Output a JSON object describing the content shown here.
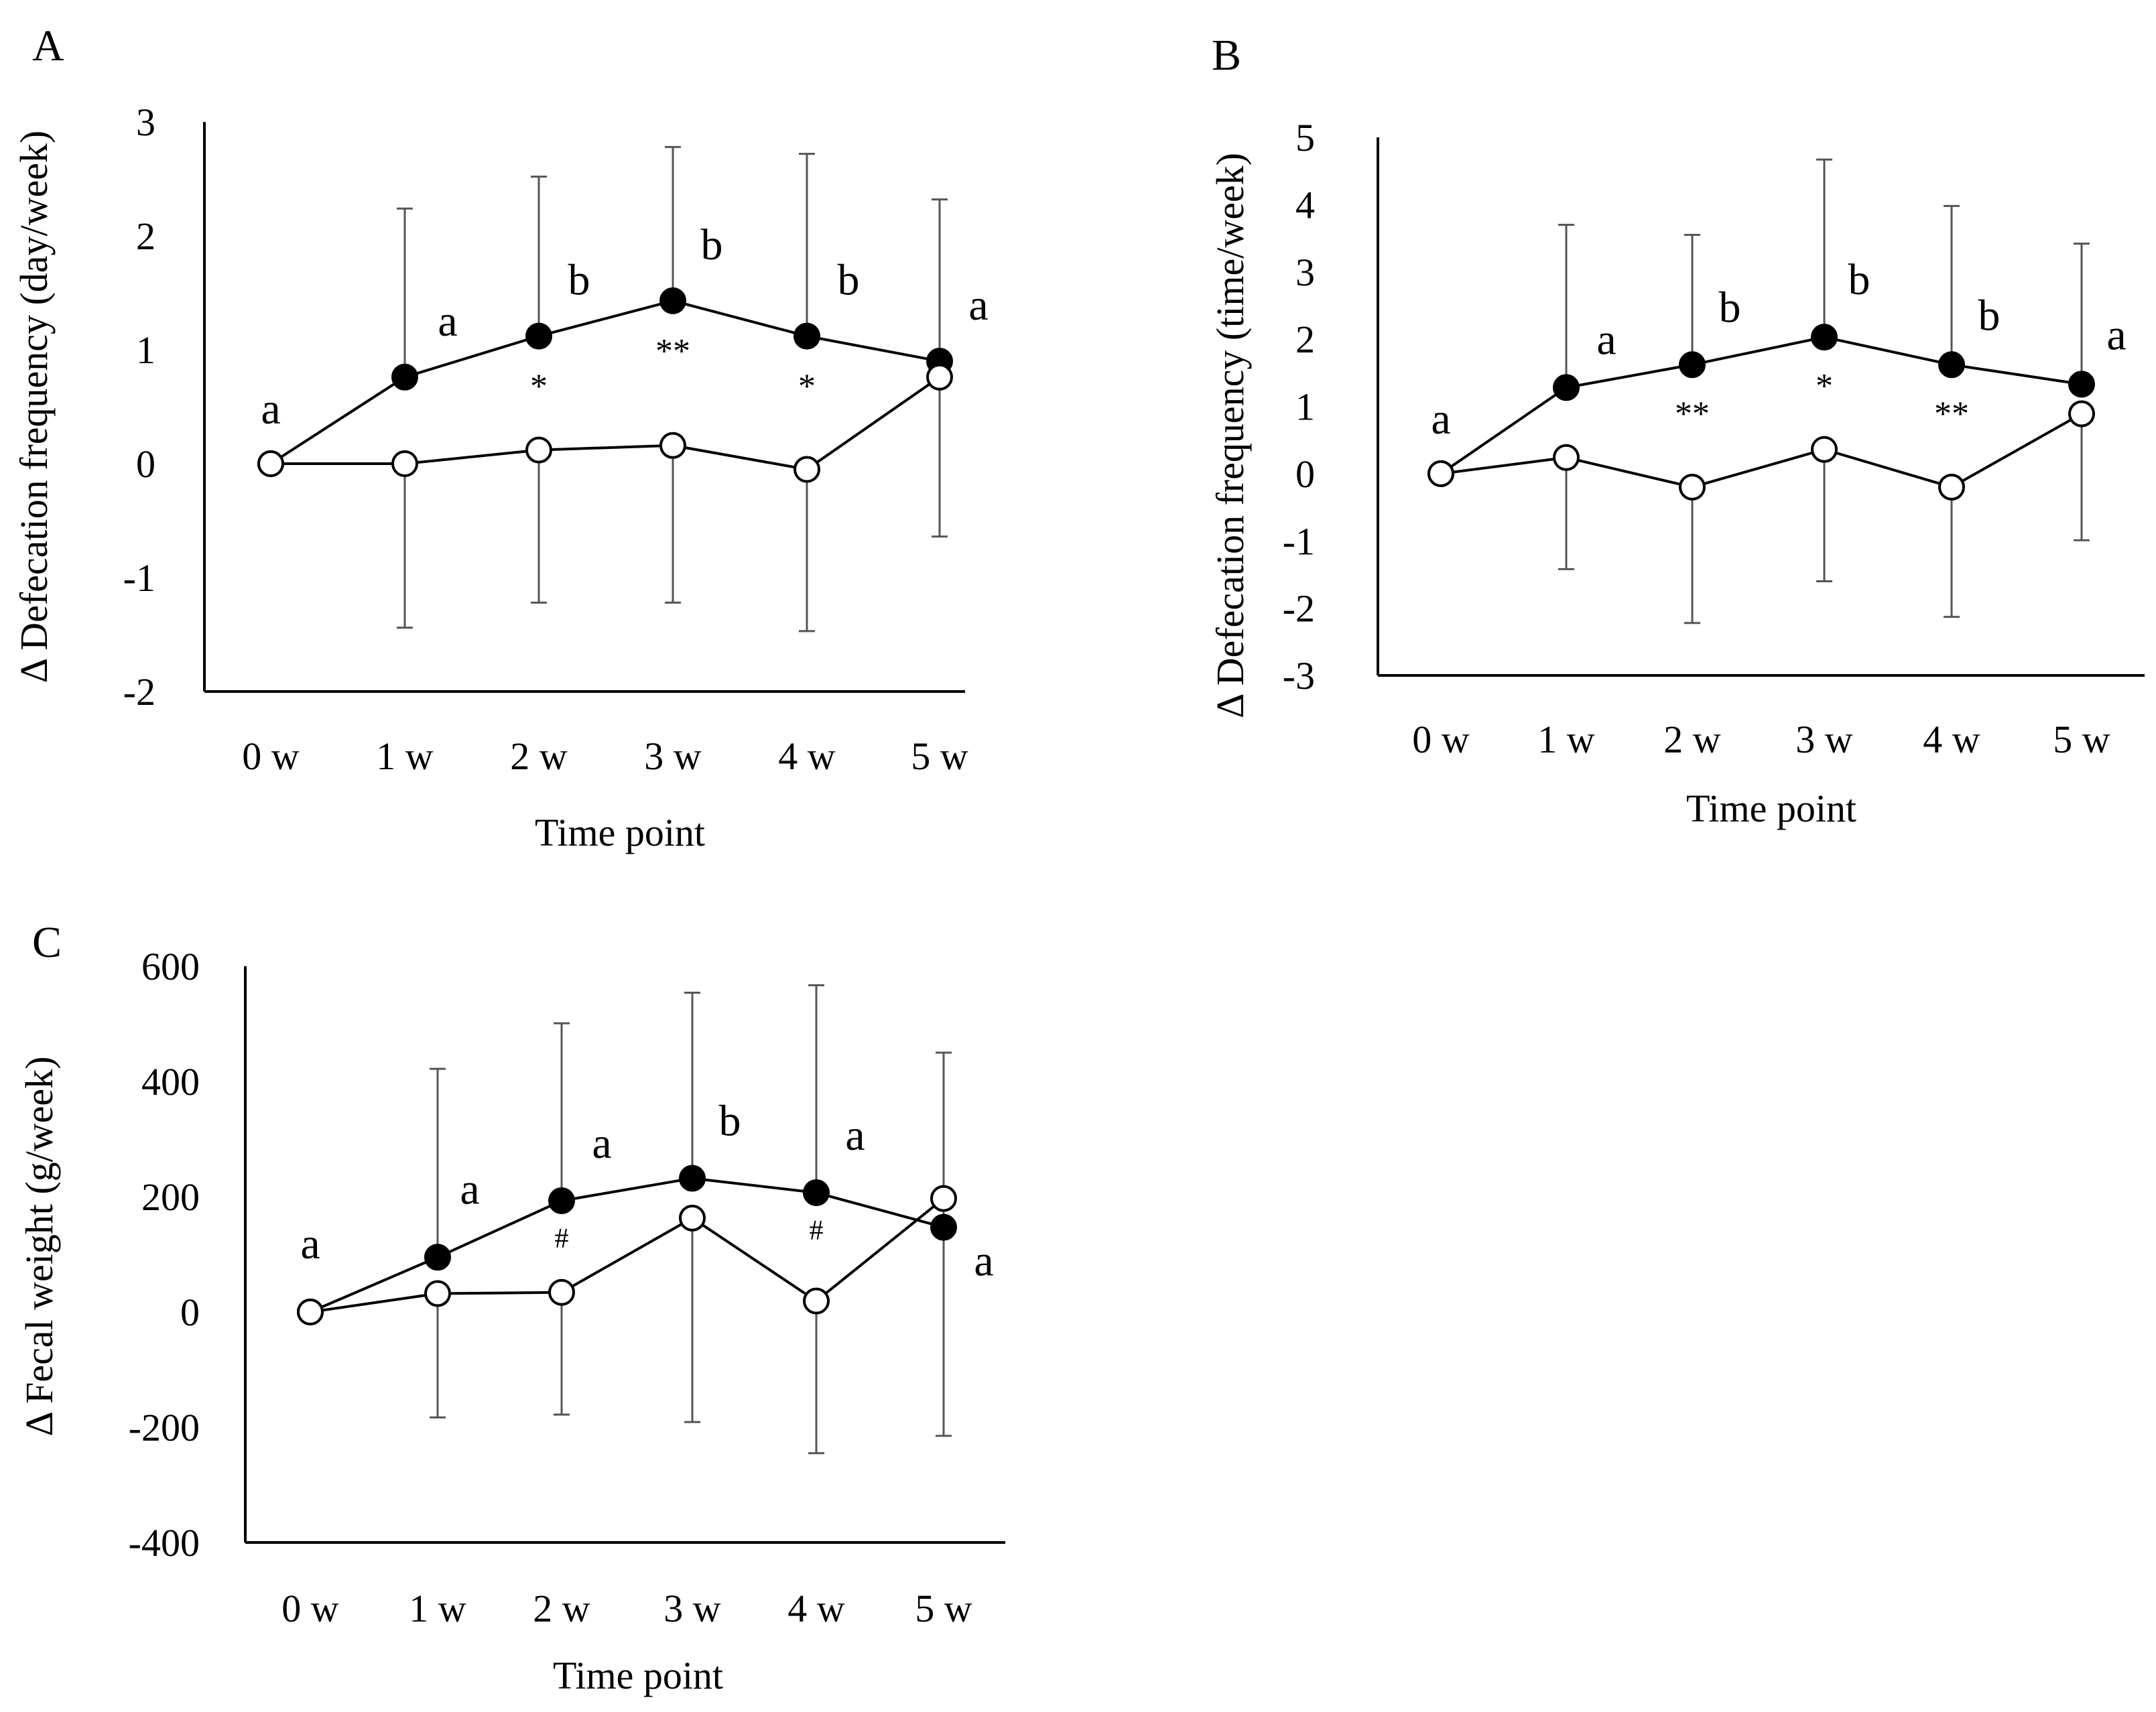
{
  "chart_data": [
    {
      "id": "A",
      "type": "line",
      "panel_label": "A",
      "title": "",
      "xlabel": "Time point",
      "ylabel": "Δ Defecation frequency (day/week)",
      "categories": [
        "0 w",
        "1 w",
        "2 w",
        "3 w",
        "4 w",
        "5 w"
      ],
      "ylim": [
        -2,
        3
      ],
      "yticks": [
        -2,
        -1,
        0,
        1,
        2,
        3
      ],
      "ytick_labels": [
        "-2",
        "-1",
        "0",
        "1",
        "2",
        "3"
      ],
      "grid": false,
      "series": [
        {
          "name": "filled",
          "marker": "filled-circle",
          "values": [
            0,
            0.76,
            1.12,
            1.43,
            1.12,
            0.9
          ],
          "err_upper": [
            null,
            2.24,
            2.52,
            2.78,
            2.72,
            2.32
          ],
          "err_lower": [
            null,
            null,
            null,
            null,
            null,
            null
          ]
        },
        {
          "name": "open",
          "marker": "open-circle",
          "values": [
            0,
            0,
            0.12,
            0.16,
            -0.05,
            0.76
          ],
          "err_upper": [
            null,
            null,
            null,
            null,
            null,
            null
          ],
          "err_lower": [
            null,
            -1.44,
            -1.22,
            -1.22,
            -1.47,
            -0.64
          ]
        }
      ],
      "annotations": {
        "letters": [
          "a",
          "a",
          "b",
          "b",
          "b",
          "a"
        ],
        "stars": [
          "",
          "",
          "*",
          "**",
          "*",
          ""
        ]
      }
    },
    {
      "id": "B",
      "type": "line",
      "panel_label": "B",
      "title": "",
      "xlabel": "Time point",
      "ylabel": "Δ Defecation frequency (time/week)",
      "categories": [
        "0 w",
        "1 w",
        "2 w",
        "3 w",
        "4 w",
        "5 w"
      ],
      "ylim": [
        -3,
        5
      ],
      "yticks": [
        -3,
        -2,
        -1,
        0,
        1,
        2,
        3,
        4,
        5
      ],
      "ytick_labels": [
        "-3",
        "-2",
        "-1",
        "0",
        "1",
        "2",
        "3",
        "4",
        "5"
      ],
      "grid": false,
      "series": [
        {
          "name": "filled",
          "marker": "filled-circle",
          "values": [
            0,
            1.28,
            1.62,
            2.03,
            1.62,
            1.33
          ],
          "err_upper": [
            null,
            3.7,
            3.55,
            4.67,
            3.98,
            3.42
          ],
          "err_lower": [
            null,
            null,
            null,
            null,
            null,
            null
          ]
        },
        {
          "name": "open",
          "marker": "open-circle",
          "values": [
            0,
            0.24,
            -0.2,
            0.36,
            -0.2,
            0.89
          ],
          "err_upper": [
            null,
            null,
            null,
            null,
            null,
            null
          ],
          "err_lower": [
            null,
            -1.42,
            -2.22,
            -1.6,
            -2.13,
            -0.99
          ]
        }
      ],
      "annotations": {
        "letters": [
          "a",
          "a",
          "b",
          "b",
          "b",
          "a"
        ],
        "stars": [
          "",
          "",
          "**",
          "*",
          "**",
          ""
        ]
      }
    },
    {
      "id": "C",
      "type": "line",
      "panel_label": "C",
      "title": "",
      "xlabel": "Time point",
      "ylabel": "Δ Fecal weight (g/week)",
      "categories": [
        "0 w",
        "1 w",
        "2 w",
        "3 w",
        "4 w",
        "5 w"
      ],
      "ylim": [
        -400,
        600
      ],
      "yticks": [
        -400,
        -200,
        0,
        200,
        400,
        600
      ],
      "ytick_labels": [
        "-400",
        "-200",
        "0",
        "200",
        "400",
        "600"
      ],
      "grid": false,
      "series": [
        {
          "name": "filled",
          "marker": "filled-circle",
          "values": [
            0,
            95,
            193,
            232,
            207,
            147
          ],
          "err_upper": [
            null,
            422,
            501,
            554,
            567,
            450
          ],
          "err_lower": [
            null,
            null,
            null,
            null,
            null,
            null
          ]
        },
        {
          "name": "open",
          "marker": "open-circle",
          "values": [
            0,
            32,
            34,
            163,
            19,
            197
          ],
          "err_upper": [
            null,
            null,
            null,
            null,
            null,
            null
          ],
          "err_lower": [
            null,
            -183,
            -178,
            -191,
            -245,
            -215
          ]
        }
      ],
      "annotations": {
        "letters": [
          "a",
          "a",
          "a",
          "b",
          "a",
          "a"
        ],
        "stars": [
          "",
          "",
          "#",
          "",
          "#",
          ""
        ]
      }
    }
  ]
}
